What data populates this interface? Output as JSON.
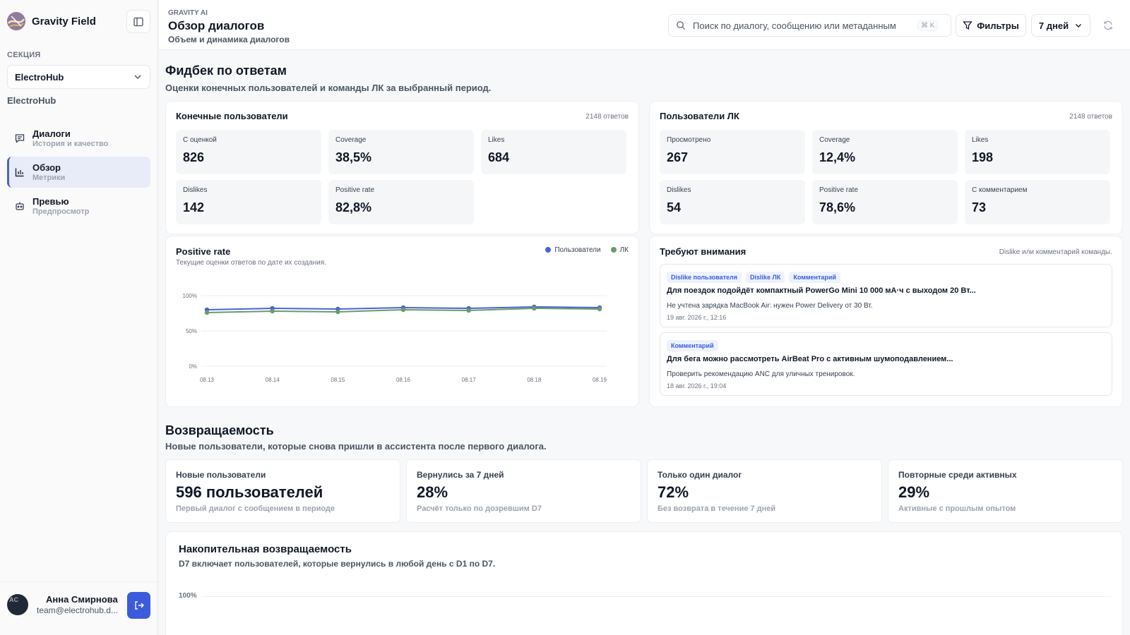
{
  "app": {
    "name": "Gravity Field"
  },
  "sidebar": {
    "section_label": "СЕКЦИЯ",
    "selected_section": "ElectroHub",
    "section_subtitle": "ElectroHub",
    "items": [
      {
        "title": "Диалоги",
        "subtitle": "История и качество",
        "icon": "chat-icon"
      },
      {
        "title": "Обзор",
        "subtitle": "Метрики",
        "icon": "bar-chart-icon"
      },
      {
        "title": "Превью",
        "subtitle": "Предпросмотр",
        "icon": "bot-icon"
      }
    ],
    "active_item": "Обзор",
    "user": {
      "initials": "AC",
      "name": "Анна Смирнова",
      "email": "team@electrohub.d..."
    }
  },
  "header": {
    "eyebrow": "GRAVITY AI",
    "title": "Обзор диалогов",
    "subtitle": "Объем и динамика диалогов",
    "search_placeholder": "Поиск по диалогу, сообщению или метаданным",
    "search_shortcut": "⌘ K",
    "filters_label": "Фильтры",
    "period_label": "7 дней"
  },
  "feedback": {
    "title": "Фидбек по ответам",
    "subtitle": "Оценки конечных пользователей и команды ЛК за выбранный период.",
    "end_users": {
      "title": "Конечные пользователи",
      "meta": "2148 ответов",
      "stats": [
        {
          "label": "С оценкой",
          "value": "826"
        },
        {
          "label": "Coverage",
          "value": "38,5%"
        },
        {
          "label": "Likes",
          "value": "684"
        },
        {
          "label": "Dislikes",
          "value": "142"
        },
        {
          "label": "Positive rate",
          "value": "82,8%"
        }
      ]
    },
    "lk_users": {
      "title": "Пользователи ЛК",
      "meta": "2148 ответов",
      "stats": [
        {
          "label": "Просмотрено",
          "value": "267"
        },
        {
          "label": "Coverage",
          "value": "12,4%"
        },
        {
          "label": "Likes",
          "value": "198"
        },
        {
          "label": "Dislikes",
          "value": "54"
        },
        {
          "label": "Positive rate",
          "value": "78,6%"
        },
        {
          "label": "С комментарием",
          "value": "73"
        }
      ]
    },
    "attention": {
      "title": "Требуют внимания",
      "meta": "Dislike или комментарий команды.",
      "items": [
        {
          "tags": [
            "Dislike пользователя",
            "Dislike ЛК",
            "Комментарий"
          ],
          "title": "Для поездок подойдёт компактный PowerGo Mini 10 000 мА·ч с выходом 20 Вт...",
          "body": "Не учтена зарядка MacBook Air: нужен Power Delivery от 30 Вт.",
          "date": "19 авг. 2026 г., 12:16"
        },
        {
          "tags": [
            "Комментарий"
          ],
          "title": "Для бега можно рассмотреть AirBeat Pro с активным шумоподавлением...",
          "body": "Проверить рекомендацию ANC для уличных тренировок.",
          "date": "18 авг. 2026 г., 19:04"
        }
      ]
    }
  },
  "chart_data": {
    "type": "line",
    "title": "Positive rate",
    "subtitle": "Текущие оценки ответов по дате их создания.",
    "x": [
      "08.13",
      "08.14",
      "08.15",
      "08.16",
      "08.17",
      "08.18",
      "08.19"
    ],
    "y_ticks": [
      "100%",
      "50%",
      "0%"
    ],
    "ylim": [
      0,
      100
    ],
    "legend_position": "top-right",
    "series": [
      {
        "name": "Пользователи",
        "color": "#4a63d6",
        "values": [
          80,
          82,
          81,
          83,
          82,
          84,
          83
        ]
      },
      {
        "name": "ЛК",
        "color": "#6b9a6b",
        "values": [
          76,
          78,
          77,
          80,
          79,
          82,
          81
        ]
      }
    ]
  },
  "retention": {
    "title": "Возвращаемость",
    "subtitle": "Новые пользователи, которые снова пришли в ассистента после первого диалога.",
    "cards": [
      {
        "label": "Новые пользователи",
        "value": "596 пользователей",
        "sub": "Первый диалог с сообщением в периоде"
      },
      {
        "label": "Вернулись за 7 дней",
        "value": "28%",
        "sub": "Расчёт только по дозревшим D7"
      },
      {
        "label": "Только один диалог",
        "value": "72%",
        "sub": "Без возврата в течение 7 дней"
      },
      {
        "label": "Повторные среди активных",
        "value": "29%",
        "sub": "Активные с прошлым опытом"
      }
    ],
    "cumulative": {
      "title": "Накопительная возвращаемость",
      "subtitle": "D7 включает пользователей, которые вернулись в любой день с D1 по D7.",
      "y_tick": "100%"
    }
  }
}
